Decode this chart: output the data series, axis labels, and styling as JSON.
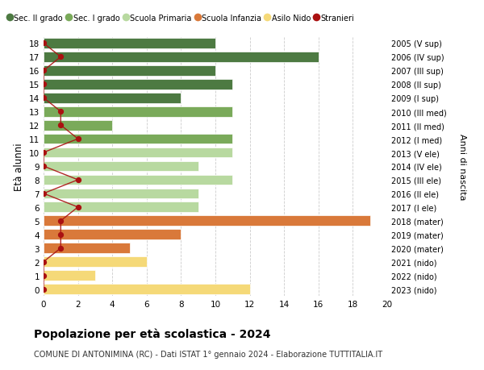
{
  "ages": [
    18,
    17,
    16,
    15,
    14,
    13,
    12,
    11,
    10,
    9,
    8,
    7,
    6,
    5,
    4,
    3,
    2,
    1,
    0
  ],
  "right_labels": [
    "2005 (V sup)",
    "2006 (IV sup)",
    "2007 (III sup)",
    "2008 (II sup)",
    "2009 (I sup)",
    "2010 (III med)",
    "2011 (II med)",
    "2012 (I med)",
    "2013 (V ele)",
    "2014 (IV ele)",
    "2015 (III ele)",
    "2016 (II ele)",
    "2017 (I ele)",
    "2018 (mater)",
    "2019 (mater)",
    "2020 (mater)",
    "2021 (nido)",
    "2022 (nido)",
    "2023 (nido)"
  ],
  "bar_values": [
    10,
    16,
    10,
    11,
    8,
    11,
    4,
    11,
    11,
    9,
    11,
    9,
    9,
    19,
    8,
    5,
    6,
    3,
    12
  ],
  "bar_colors": [
    "#4d7a42",
    "#4d7a42",
    "#4d7a42",
    "#4d7a42",
    "#4d7a42",
    "#7aaa5a",
    "#7aaa5a",
    "#7aaa5a",
    "#b8d9a0",
    "#b8d9a0",
    "#b8d9a0",
    "#b8d9a0",
    "#b8d9a0",
    "#d9793a",
    "#d9793a",
    "#d9793a",
    "#f5d978",
    "#f5d978",
    "#f5d978"
  ],
  "stranieri_values": [
    0,
    1,
    0,
    0,
    0,
    1,
    1,
    2,
    0,
    0,
    2,
    0,
    2,
    1,
    1,
    1,
    0,
    0,
    0
  ],
  "stranieri_color": "#aa1111",
  "legend_labels": [
    "Sec. II grado",
    "Sec. I grado",
    "Scuola Primaria",
    "Scuola Infanzia",
    "Asilo Nido",
    "Stranieri"
  ],
  "legend_colors": [
    "#4d7a42",
    "#7aaa5a",
    "#b8d9a0",
    "#d9793a",
    "#f5d978",
    "#aa1111"
  ],
  "ylabel": "Età alunni",
  "right_ylabel": "Anni di nascita",
  "title": "Popolazione per età scolastica - 2024",
  "subtitle": "COMUNE DI ANTONIMINA (RC) - Dati ISTAT 1° gennaio 2024 - Elaborazione TUTTITALIA.IT",
  "xlim": [
    0,
    20
  ],
  "xticks": [
    0,
    2,
    4,
    6,
    8,
    10,
    12,
    14,
    16,
    18,
    20
  ],
  "background_color": "#ffffff",
  "grid_color": "#cccccc"
}
